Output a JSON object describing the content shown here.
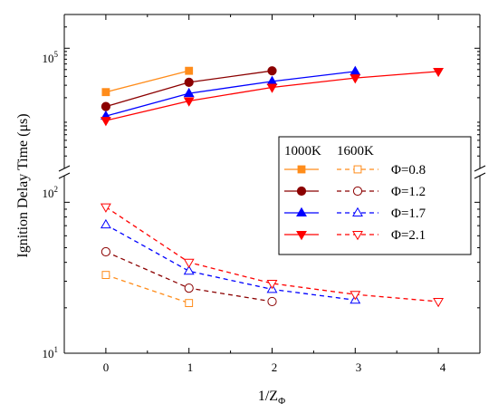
{
  "chart_data": {
    "type": "line",
    "xlabel": "1/Z",
    "xlabel_sub": "Φ",
    "ylabel": "Ignition Delay Time (μs)",
    "xlim": [
      -0.5,
      4.5
    ],
    "xticks": [
      "0",
      "1",
      "2",
      "3",
      "4"
    ],
    "xtick_values": [
      0,
      1,
      2,
      3,
      4
    ],
    "y_scale": "log",
    "axis_break": true,
    "upper_panel": {
      "ylim": [
        2000,
        300000
      ],
      "ytick_value": 100000,
      "ytick_base": "10",
      "ytick_exp": "5"
    },
    "lower_panel": {
      "ylim": [
        10,
        150
      ],
      "yticks": [
        {
          "value": 100,
          "base": "10",
          "exp": "2"
        },
        {
          "value": 10,
          "base": "10",
          "exp": "1"
        }
      ]
    },
    "legend": {
      "position": "right",
      "headers": [
        "1000K",
        "1600K"
      ],
      "entries": [
        "Φ=0.8",
        "Φ=1.2",
        "Φ=1.7",
        "Φ=2.1"
      ]
    },
    "series": [
      {
        "phi": "Φ=0.8",
        "temperature": "1000K",
        "panel": "upper",
        "color": "#FF8C1A",
        "marker": "square",
        "filled": true,
        "dashed": false,
        "x": [
          0,
          1
        ],
        "y": [
          24000,
          48000
        ]
      },
      {
        "phi": "Φ=1.2",
        "temperature": "1000K",
        "panel": "upper",
        "color": "#8B0000",
        "marker": "circle",
        "filled": true,
        "dashed": false,
        "x": [
          0,
          1,
          2
        ],
        "y": [
          15000,
          33000,
          48000
        ]
      },
      {
        "phi": "Φ=1.7",
        "temperature": "1000K",
        "panel": "upper",
        "color": "#0000FF",
        "marker": "triangle-up",
        "filled": true,
        "dashed": false,
        "x": [
          0,
          1,
          2,
          3
        ],
        "y": [
          11000,
          23000,
          34000,
          47000
        ]
      },
      {
        "phi": "Φ=2.1",
        "temperature": "1000K",
        "panel": "upper",
        "color": "#FF0000",
        "marker": "triangle-down",
        "filled": true,
        "dashed": false,
        "x": [
          0,
          1,
          2,
          3,
          4
        ],
        "y": [
          9500,
          18000,
          28000,
          38000,
          47000
        ]
      },
      {
        "phi": "Φ=0.8",
        "temperature": "1600K",
        "panel": "lower",
        "color": "#FF8C1A",
        "marker": "square",
        "filled": false,
        "dashed": true,
        "x": [
          0,
          1
        ],
        "y": [
          33,
          21.5
        ]
      },
      {
        "phi": "Φ=1.2",
        "temperature": "1600K",
        "panel": "lower",
        "color": "#8B0000",
        "marker": "circle",
        "filled": false,
        "dashed": true,
        "x": [
          0,
          1,
          2
        ],
        "y": [
          47,
          27,
          22
        ]
      },
      {
        "phi": "Φ=1.7",
        "temperature": "1600K",
        "panel": "lower",
        "color": "#0000FF",
        "marker": "triangle-up",
        "filled": false,
        "dashed": true,
        "x": [
          0,
          1,
          2,
          3
        ],
        "y": [
          71,
          35,
          26.5,
          22.5
        ]
      },
      {
        "phi": "Φ=2.1",
        "temperature": "1600K",
        "panel": "lower",
        "color": "#FF0000",
        "marker": "triangle-down",
        "filled": false,
        "dashed": true,
        "x": [
          0,
          1,
          2,
          3,
          4
        ],
        "y": [
          93,
          40,
          29,
          24.5,
          22
        ]
      }
    ]
  }
}
